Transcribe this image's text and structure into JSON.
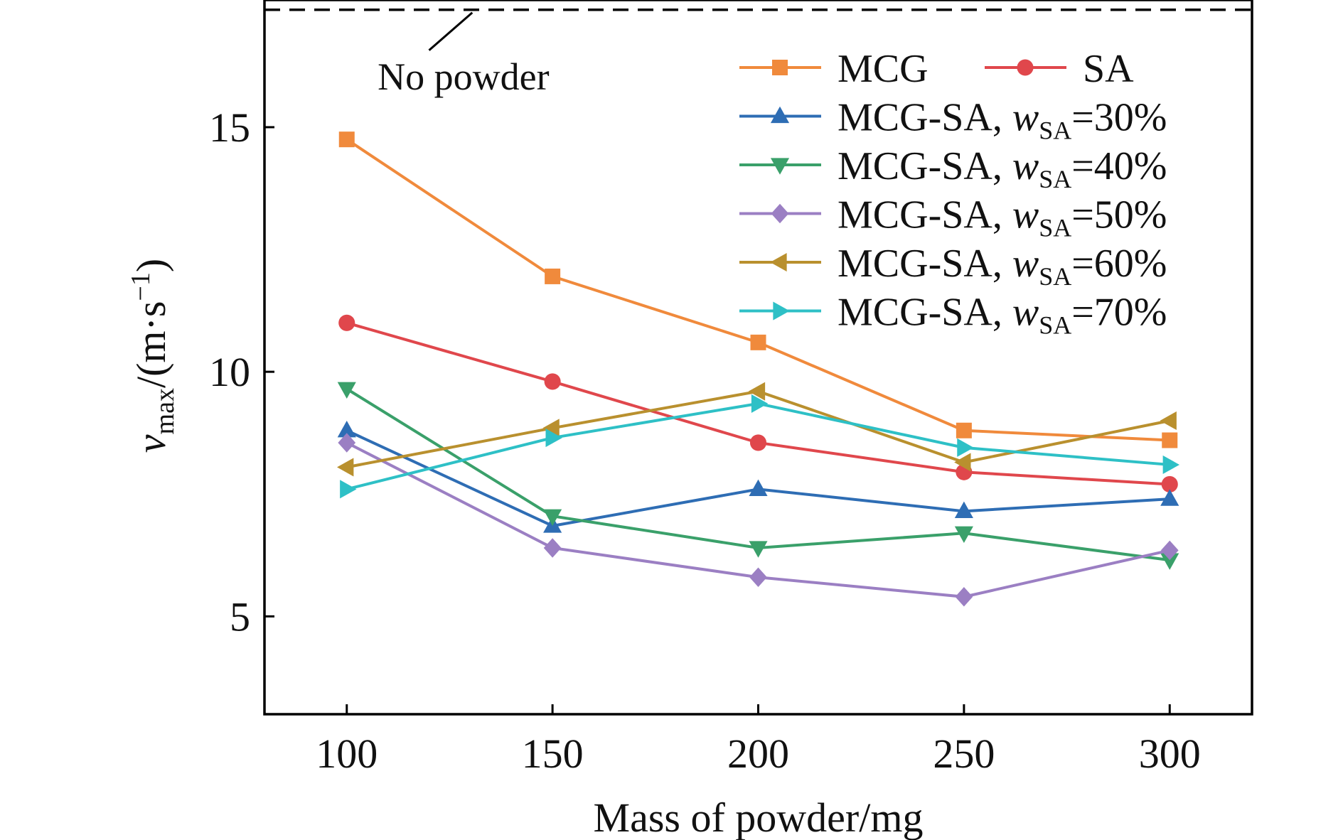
{
  "chart_data": {
    "type": "line",
    "xlabel": "Mass of powder/mg",
    "ylabel": {
      "symbol": "v",
      "subscript": "max",
      "unit_prefix": "/(m·s",
      "exponent": "−1",
      "unit_suffix": ")"
    },
    "x": [
      100,
      150,
      200,
      250,
      300
    ],
    "x_ticks": [
      "100",
      "150",
      "200",
      "250",
      "300"
    ],
    "y_ticks": [
      "5",
      "10",
      "15"
    ],
    "xlim": [
      80,
      320
    ],
    "ylim": [
      3,
      17.6
    ],
    "grid": false,
    "legend_position": "top-right",
    "reference_line": {
      "label": "No powder",
      "value": 17.4,
      "style": "dashed",
      "color": "#000000"
    },
    "series": [
      {
        "name": "MCG",
        "color": "#f08a3c",
        "marker": "square",
        "values": [
          14.75,
          11.95,
          10.6,
          8.8,
          8.6
        ]
      },
      {
        "name": "SA",
        "color": "#e0474c",
        "marker": "circle",
        "values": [
          11.0,
          9.8,
          8.55,
          7.95,
          7.7
        ]
      },
      {
        "name": "MCG-SA, wSA=30%",
        "name_parts": {
          "prefix": "MCG-SA, ",
          "symbol": "w",
          "subscript": "SA",
          "suffix": "=30%"
        },
        "color": "#2e6db4",
        "marker": "triangle-up",
        "values": [
          8.8,
          6.85,
          7.6,
          7.15,
          7.4
        ]
      },
      {
        "name": "MCG-SA, wSA=40%",
        "name_parts": {
          "prefix": "MCG-SA, ",
          "symbol": "w",
          "subscript": "SA",
          "suffix": "=40%"
        },
        "color": "#3aa06a",
        "marker": "triangle-down",
        "values": [
          9.65,
          7.05,
          6.4,
          6.7,
          6.15
        ]
      },
      {
        "name": "MCG-SA, wSA=50%",
        "name_parts": {
          "prefix": "MCG-SA, ",
          "symbol": "w",
          "subscript": "SA",
          "suffix": "=50%"
        },
        "color": "#9b7fc3",
        "marker": "diamond",
        "values": [
          8.55,
          6.4,
          5.8,
          5.4,
          6.35
        ]
      },
      {
        "name": "MCG-SA, wSA=60%",
        "name_parts": {
          "prefix": "MCG-SA, ",
          "symbol": "w",
          "subscript": "SA",
          "suffix": "=60%"
        },
        "color": "#b9902e",
        "marker": "triangle-left",
        "values": [
          8.05,
          8.85,
          9.6,
          8.15,
          9.0
        ]
      },
      {
        "name": "MCG-SA, wSA=70%",
        "name_parts": {
          "prefix": "MCG-SA, ",
          "symbol": "w",
          "subscript": "SA",
          "suffix": "=70%"
        },
        "color": "#2ec0c6",
        "marker": "triangle-right",
        "values": [
          7.6,
          8.65,
          9.35,
          8.45,
          8.1
        ]
      }
    ]
  }
}
